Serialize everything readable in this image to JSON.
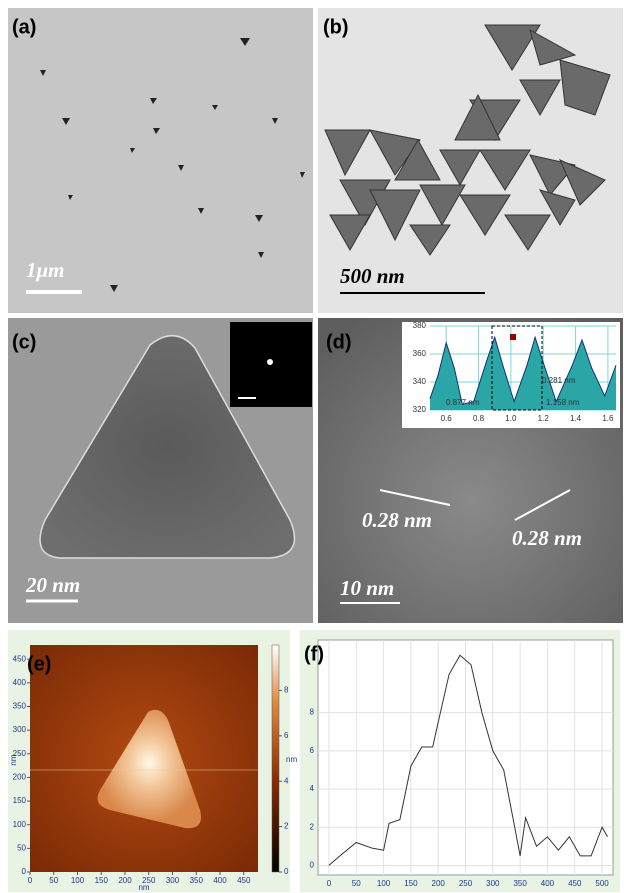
{
  "panels": [
    {
      "label": "(a)",
      "scale_bar": "1μm"
    },
    {
      "label": "(b)",
      "scale_bar": "500 nm"
    },
    {
      "label": "(c)",
      "scale_bar": "20 nm"
    },
    {
      "label": "(d)",
      "scale_bar": "10 nm",
      "annotations": [
        "0.28 nm",
        "0.28 nm"
      ],
      "inset": {
        "xlim": [
          0.5,
          1.65
        ],
        "ylim": [
          320,
          380
        ],
        "xticks": [
          0.6,
          0.8,
          {
            "value": 1,
            "label": "1.0"
          },
          1.2,
          1.4,
          1.6
        ],
        "yticks": [
          320,
          340,
          360,
          380
        ],
        "x": [
          0.5,
          0.55,
          0.6,
          0.65,
          0.7,
          0.77,
          0.85,
          0.9,
          0.95,
          1.02,
          1.1,
          1.15,
          1.2,
          1.28,
          1.38,
          1.44,
          1.5,
          1.58,
          1.65
        ],
        "values": [
          328,
          345,
          368,
          350,
          324,
          326,
          355,
          372,
          352,
          326,
          352,
          372,
          354,
          326,
          352,
          370,
          350,
          330,
          352
        ],
        "annotations": [
          "0.281 nm",
          "0.877 nm",
          "1.158 nm"
        ]
      }
    },
    {
      "label": "(e)",
      "xlim": [
        0,
        480
      ],
      "ylim": [
        0,
        480
      ],
      "xticks": [
        0,
        50,
        100,
        150,
        200,
        250,
        300,
        350,
        400,
        450
      ],
      "yticks": [
        0,
        50,
        100,
        150,
        200,
        250,
        300,
        350,
        400,
        450
      ],
      "x_label": "nm",
      "y_label": "nm",
      "colorbar": {
        "lim": [
          0,
          10
        ],
        "ticks": [
          0,
          2,
          4,
          6,
          8
        ],
        "label": "nm"
      }
    },
    {
      "label": "(f)",
      "xlim": [
        -20,
        520
      ],
      "ylim": [
        -0.5,
        11.8
      ],
      "xticks": [
        0,
        50,
        100,
        150,
        200,
        250,
        300,
        350,
        400,
        450,
        500
      ],
      "yticks": [
        0,
        2,
        4,
        6,
        8
      ],
      "x": [
        0,
        20,
        50,
        80,
        100,
        110,
        130,
        150,
        170,
        190,
        200,
        220,
        240,
        260,
        280,
        300,
        320,
        340,
        350,
        360,
        380,
        400,
        420,
        440,
        460,
        480,
        500,
        510
      ],
      "values": [
        0,
        0.5,
        1.2,
        0.9,
        0.8,
        2.2,
        2.4,
        5.2,
        6.2,
        6.2,
        7.5,
        10,
        11,
        10.5,
        8,
        6,
        5,
        2,
        0.5,
        2.5,
        1,
        1.5,
        0.8,
        1.5,
        0.5,
        0.5,
        2,
        1.5
      ]
    }
  ]
}
